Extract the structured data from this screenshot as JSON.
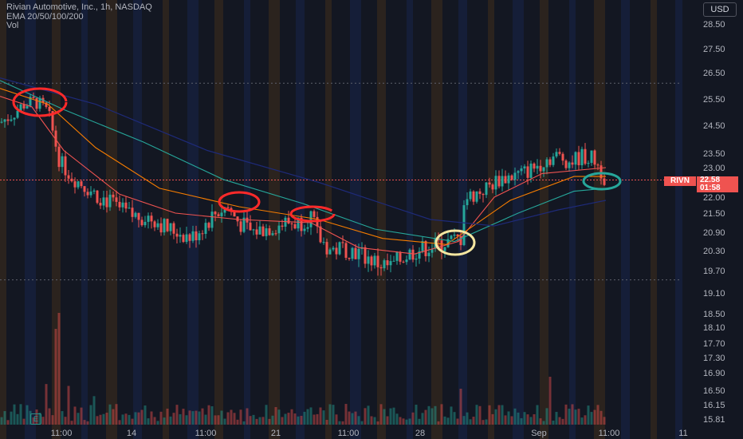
{
  "header": {
    "title": "Rivian Automotive, Inc., 1h, NASDAQ",
    "indicator": "EMA 20/50/100/200",
    "volume": "Vol"
  },
  "currency_button": "USD",
  "price_tags": {
    "symbol": "RIVN",
    "last_price": "22.58",
    "countdown": "01:58"
  },
  "colors": {
    "background": "#131722",
    "up": "#26a69a",
    "down": "#ef5350",
    "ema20": "#ef5350",
    "ema50": "#f57c00",
    "ema100": "#26a69a",
    "ema200": "#1e2a78",
    "circle_red": "#ff2a2a",
    "circle_yellow": "#f5e6a0",
    "circle_green": "#26a69a"
  },
  "chart_data": {
    "type": "candlestick",
    "title": "Rivian Automotive, Inc., 1h, NASDAQ",
    "x_tick_labels": [
      "11:00",
      "14",
      "11:00",
      "21",
      "11:00",
      "28",
      "Sep",
      "11:00",
      "11"
    ],
    "y_tick_labels": [
      "28.50",
      "27.50",
      "26.50",
      "25.50",
      "24.50",
      "23.50",
      "23.00",
      "22.00",
      "21.50",
      "20.90",
      "20.30",
      "19.70",
      "19.10",
      "18.50",
      "18.10",
      "17.70",
      "17.30",
      "16.90",
      "16.50",
      "16.15",
      "15.81"
    ],
    "ylim": [
      15.81,
      28.5
    ],
    "dotted_levels": [
      26.1,
      19.45
    ],
    "last_price": 22.58,
    "price_path": [
      [
        0,
        24.6
      ],
      [
        15,
        24.9
      ],
      [
        30,
        25.3
      ],
      [
        45,
        25.4
      ],
      [
        60,
        25.0
      ],
      [
        75,
        23.2
      ],
      [
        90,
        22.7
      ],
      [
        105,
        22.4
      ],
      [
        120,
        22.1
      ],
      [
        135,
        21.9
      ],
      [
        150,
        21.6
      ],
      [
        165,
        21.4
      ],
      [
        180,
        21.4
      ],
      [
        195,
        21.3
      ],
      [
        210,
        21.0
      ],
      [
        225,
        20.9
      ],
      [
        240,
        20.7
      ],
      [
        255,
        21.1
      ],
      [
        270,
        21.5
      ],
      [
        285,
        21.7
      ],
      [
        300,
        21.2
      ],
      [
        315,
        20.9
      ],
      [
        330,
        21.0
      ],
      [
        345,
        21.1
      ],
      [
        360,
        21.2
      ],
      [
        375,
        21.2
      ],
      [
        390,
        21.4
      ],
      [
        400,
        20.7
      ],
      [
        415,
        20.3
      ],
      [
        430,
        20.4
      ],
      [
        445,
        20.3
      ],
      [
        460,
        20.1
      ],
      [
        475,
        19.9
      ],
      [
        490,
        19.8
      ],
      [
        505,
        20.1
      ],
      [
        520,
        20.3
      ],
      [
        535,
        20.4
      ],
      [
        550,
        20.5
      ],
      [
        565,
        20.6
      ],
      [
        578,
        20.7
      ],
      [
        580,
        21.9
      ],
      [
        595,
        22.1
      ],
      [
        610,
        22.3
      ],
      [
        625,
        22.6
      ],
      [
        640,
        22.7
      ],
      [
        655,
        22.8
      ],
      [
        670,
        23.0
      ],
      [
        685,
        23.3
      ],
      [
        700,
        23.4
      ],
      [
        715,
        23.2
      ],
      [
        730,
        23.4
      ],
      [
        745,
        23.3
      ],
      [
        760,
        22.6
      ]
    ],
    "series": [
      {
        "name": "EMA 20",
        "values": [
          [
            0,
            25.6
          ],
          [
            40,
            25.2
          ],
          [
            80,
            23.6
          ],
          [
            150,
            22.1
          ],
          [
            220,
            21.5
          ],
          [
            300,
            21.3
          ],
          [
            390,
            21.2
          ],
          [
            450,
            20.4
          ],
          [
            520,
            20.2
          ],
          [
            575,
            20.6
          ],
          [
            620,
            22.0
          ],
          [
            680,
            22.8
          ],
          [
            760,
            23.0
          ]
        ]
      },
      {
        "name": "EMA 50",
        "values": [
          [
            0,
            25.9
          ],
          [
            60,
            25.3
          ],
          [
            120,
            23.7
          ],
          [
            200,
            22.3
          ],
          [
            300,
            21.7
          ],
          [
            400,
            21.3
          ],
          [
            480,
            20.7
          ],
          [
            560,
            20.5
          ],
          [
            640,
            21.9
          ],
          [
            720,
            22.7
          ],
          [
            760,
            22.7
          ]
        ]
      },
      {
        "name": "EMA 100",
        "values": [
          [
            0,
            26.2
          ],
          [
            80,
            25.1
          ],
          [
            180,
            23.9
          ],
          [
            280,
            22.6
          ],
          [
            380,
            21.8
          ],
          [
            470,
            21.0
          ],
          [
            570,
            20.6
          ],
          [
            650,
            21.5
          ],
          [
            720,
            22.2
          ],
          [
            760,
            22.3
          ]
        ]
      },
      {
        "name": "EMA 200",
        "values": [
          [
            0,
            26.3
          ],
          [
            120,
            25.3
          ],
          [
            260,
            23.6
          ],
          [
            400,
            22.5
          ],
          [
            540,
            21.3
          ],
          [
            620,
            21.1
          ],
          [
            700,
            21.6
          ],
          [
            760,
            21.9
          ]
        ]
      }
    ],
    "legend": ""
  }
}
